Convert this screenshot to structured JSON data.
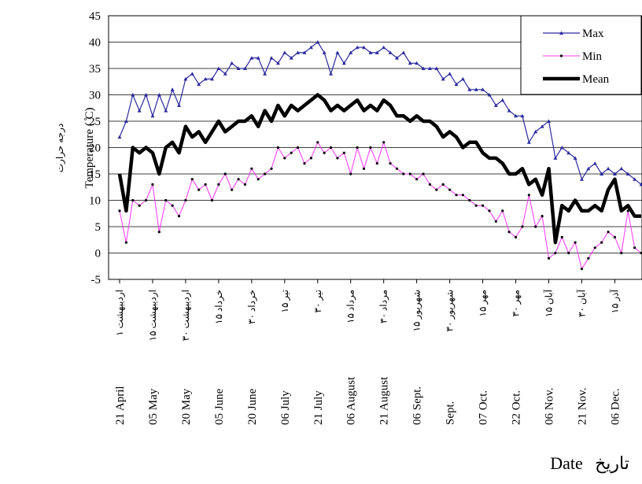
{
  "chart_data": {
    "type": "line",
    "y_label": "Temperature ( ̊C)",
    "y_label_fa": "درجه حرارت",
    "x_label": "Date",
    "x_label_fa": "تاریخ",
    "categories": [
      "21 April",
      null,
      null,
      null,
      null,
      "05 May",
      null,
      null,
      null,
      null,
      "20 May",
      null,
      null,
      null,
      null,
      "05 June",
      null,
      null,
      null,
      null,
      "20 June",
      null,
      null,
      null,
      null,
      "06 July",
      null,
      null,
      null,
      null,
      "21 July",
      null,
      null,
      null,
      null,
      "06 August",
      null,
      null,
      null,
      null,
      "21 August",
      null,
      null,
      null,
      null,
      "06 Sept.",
      null,
      null,
      null,
      null,
      "Sept.",
      null,
      null,
      null,
      null,
      "07 Oct.",
      null,
      null,
      null,
      null,
      "22 Oct.",
      null,
      null,
      null,
      null,
      "06 Nov.",
      null,
      null,
      null,
      null,
      "21 Nov.",
      null,
      null,
      null,
      null,
      "06 Dec.",
      null,
      null,
      null,
      null
    ],
    "categories_fa": [
      "۱ اردیبهشت",
      null,
      null,
      null,
      null,
      "۱۵ اردیبهشت",
      null,
      null,
      null,
      null,
      "۳۰ اردیبهشت",
      null,
      null,
      null,
      null,
      "۱۵ خرداد",
      null,
      null,
      null,
      null,
      "۳۰ خرداد",
      null,
      null,
      null,
      null,
      "۱۵ تیر",
      null,
      null,
      null,
      null,
      "۳۰ تیر",
      null,
      null,
      null,
      null,
      "۱۵ مرداد",
      null,
      null,
      null,
      null,
      "۳۰ مرداد",
      null,
      null,
      null,
      null,
      "۱۵ شهریور",
      null,
      null,
      null,
      null,
      "۳۰ شهریور",
      null,
      null,
      null,
      null,
      "۱۵ مهر",
      null,
      null,
      null,
      null,
      "۳۰ مهر",
      null,
      null,
      null,
      null,
      "۱۵ آبان",
      null,
      null,
      null,
      null,
      "۳۰ آبان",
      null,
      null,
      null,
      null,
      "۱۵ آذر",
      null,
      null,
      null,
      null
    ],
    "series": [
      {
        "name": "Max",
        "color": "#2b2b9e",
        "marker": "triangle",
        "width": 1.2,
        "values": [
          22,
          25,
          30,
          27,
          30,
          26,
          30,
          27,
          31,
          28,
          33,
          34,
          32,
          33,
          33,
          35,
          34,
          36,
          35,
          35,
          37,
          37,
          34,
          37,
          36,
          38,
          37,
          38,
          38,
          39,
          40,
          38,
          34,
          38,
          36,
          38,
          39,
          39,
          38,
          38,
          39,
          38,
          37,
          38,
          36,
          36,
          35,
          35,
          35,
          33,
          34,
          32,
          33,
          31,
          31,
          31,
          30,
          28,
          29,
          27,
          26,
          26,
          21,
          23,
          24,
          25,
          18,
          20,
          19,
          18,
          14,
          16,
          17,
          15,
          16,
          15,
          16,
          15,
          14,
          13
        ]
      },
      {
        "name": "Min",
        "color": "#ff33ff",
        "marker": "dot",
        "width": 1,
        "values": [
          8,
          2,
          10,
          9,
          10,
          13,
          4,
          10,
          9,
          7,
          10,
          14,
          12,
          13,
          10,
          13,
          15,
          12,
          14,
          13,
          16,
          14,
          15,
          16,
          20,
          18,
          19,
          20,
          17,
          18,
          21,
          19,
          20,
          18,
          19,
          15,
          20,
          16,
          20,
          17,
          21,
          17,
          16,
          15,
          15,
          14,
          15,
          13,
          12,
          13,
          12,
          11,
          11,
          10,
          9,
          9,
          8,
          6,
          8,
          4,
          3,
          5,
          11,
          5,
          7,
          -1,
          0,
          3,
          0,
          2,
          -3,
          -1,
          1,
          2,
          4,
          3,
          0,
          8,
          1,
          0
        ]
      },
      {
        "name": "Mean",
        "color": "#000000",
        "marker": "none",
        "width": 4.5,
        "values": [
          15,
          8,
          20,
          19,
          20,
          19,
          15,
          20,
          21,
          19,
          24,
          22,
          23,
          21,
          23,
          25,
          23,
          24,
          25,
          25,
          26,
          24,
          27,
          25,
          28,
          26,
          28,
          27,
          28,
          29,
          30,
          29,
          27,
          28,
          27,
          28,
          29,
          27,
          28,
          27,
          29,
          28,
          26,
          26,
          25,
          26,
          25,
          25,
          24,
          22,
          23,
          22,
          20,
          21,
          21,
          19,
          18,
          18,
          17,
          15,
          15,
          16,
          13,
          14,
          11,
          16,
          2,
          9,
          8,
          10,
          8,
          8,
          9,
          8,
          12,
          14,
          8,
          9,
          7,
          7
        ]
      }
    ],
    "ylim": [
      -5,
      45
    ],
    "yticks": [
      -5,
      0,
      5,
      10,
      15,
      20,
      25,
      30,
      35,
      40,
      45
    ],
    "grid": true,
    "legend": "top-right"
  }
}
